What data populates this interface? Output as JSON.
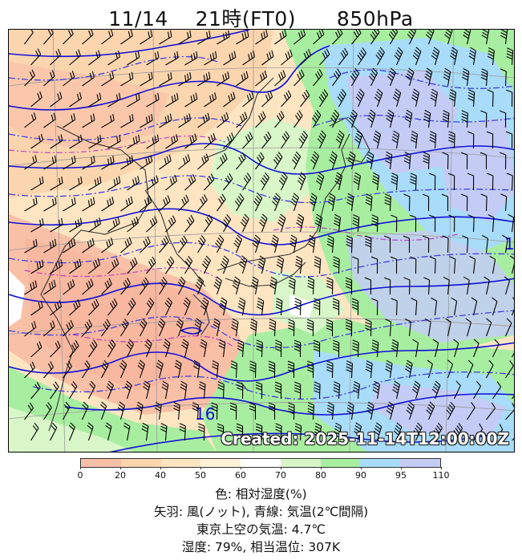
{
  "title": {
    "date": "11/14",
    "time": "21時(FT0)",
    "level": "850hPa"
  },
  "created": "Created: 2025-11-14T12:00:00Z",
  "colorbar": {
    "ticks": [
      "0",
      "20",
      "40",
      "50",
      "60",
      "70",
      "80",
      "90",
      "95",
      "110"
    ],
    "colors": [
      "#f9c0a8",
      "#fbd5ae",
      "#fde5c2",
      "#fdf2d8",
      "#ffffff",
      "#d8f6c8",
      "#a8eea0",
      "#a8dcf8",
      "#c4ccf6"
    ]
  },
  "contour_labels": [
    "16",
    "1"
  ],
  "legend": {
    "line1": "色: 相対湿度(%)",
    "line2": "矢羽: 風(ノット),  青線: 気温(2℃間隔)",
    "line3": "東京上空の気温: 4.7℃",
    "line4": "湿度: 79%, 相当温位: 307K"
  }
}
